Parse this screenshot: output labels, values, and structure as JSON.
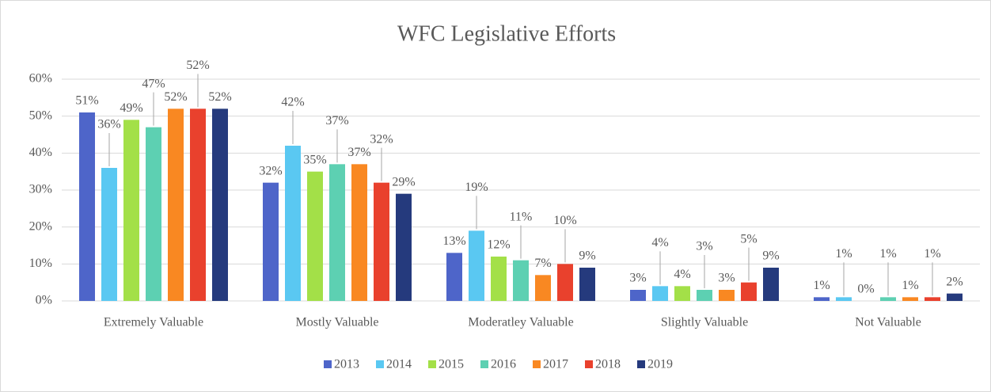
{
  "chart_data": {
    "type": "bar",
    "title": "WFC Legislative Efforts",
    "categories": [
      "Extremely Valuable",
      "Mostly Valuable",
      "Moderatley Valuable",
      "Slightly Valuable",
      "Not Valuable"
    ],
    "series": [
      {
        "name": "2013",
        "color": "#4e65c9",
        "values": [
          51,
          32,
          13,
          3,
          1
        ],
        "value_labels": [
          "51%",
          "32%",
          "13%",
          "3%",
          "1%"
        ]
      },
      {
        "name": "2014",
        "color": "#5ac8f2",
        "values": [
          36,
          42,
          19,
          4,
          1
        ],
        "value_labels": [
          "36%",
          "42%",
          "19%",
          "4%",
          "1%"
        ]
      },
      {
        "name": "2015",
        "color": "#a3e048",
        "values": [
          49,
          35,
          12,
          4,
          0
        ],
        "value_labels": [
          "49%",
          "35%",
          "12%",
          "4%",
          "0%"
        ]
      },
      {
        "name": "2016",
        "color": "#5dd0b2",
        "values": [
          47,
          37,
          11,
          3,
          1
        ],
        "value_labels": [
          "47%",
          "37%",
          "11%",
          "3%",
          "1%"
        ]
      },
      {
        "name": "2017",
        "color": "#f98822",
        "values": [
          52,
          37,
          7,
          3,
          1
        ],
        "value_labels": [
          "52%",
          "37%",
          "7%",
          "3%",
          "1%"
        ]
      },
      {
        "name": "2018",
        "color": "#e9412d",
        "values": [
          52,
          32,
          10,
          5,
          1
        ],
        "value_labels": [
          "52%",
          "32%",
          "10%",
          "5%",
          "1%"
        ]
      },
      {
        "name": "2019",
        "color": "#253a7d",
        "values": [
          52,
          29,
          9,
          9,
          2
        ],
        "value_labels": [
          "52%",
          "29%",
          "9%",
          "9%",
          "2%"
        ]
      }
    ],
    "ylim": [
      0,
      60
    ],
    "yticks": [
      {
        "value": 0,
        "label": "0%"
      },
      {
        "value": 10,
        "label": "10%"
      },
      {
        "value": 20,
        "label": "20%"
      },
      {
        "value": 30,
        "label": "30%"
      },
      {
        "value": 40,
        "label": "40%"
      },
      {
        "value": 50,
        "label": "50%"
      },
      {
        "value": 60,
        "label": "60%"
      }
    ],
    "grid": true,
    "legend": "bottom"
  }
}
